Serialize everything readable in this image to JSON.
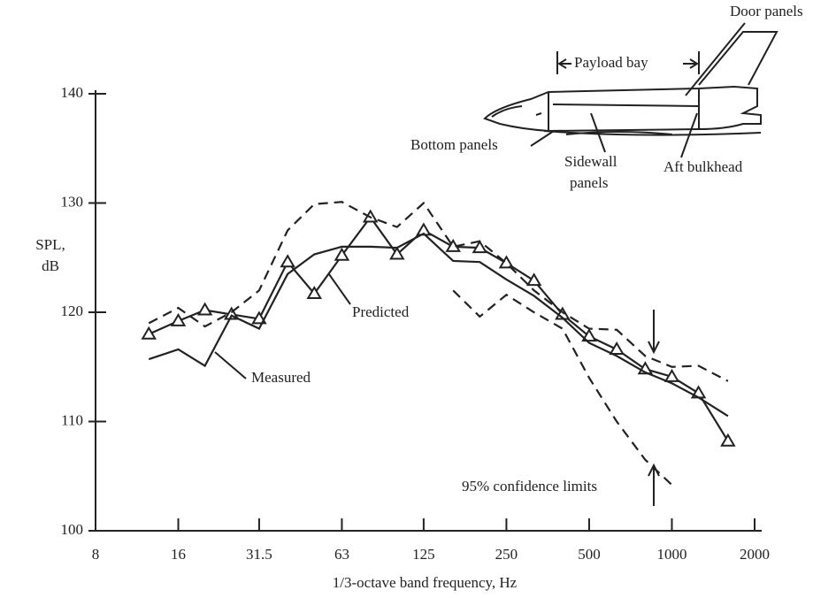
{
  "chart_data": {
    "type": "line",
    "x": [
      12.5,
      16,
      20,
      25,
      31.5,
      40,
      50,
      63,
      80,
      100,
      125,
      160,
      200,
      250,
      315,
      400,
      500,
      630,
      800,
      1000,
      1250,
      1600
    ],
    "series": [
      {
        "color": "#222222",
        "marker": "triangle",
        "dashed": false,
        "values": [
          118,
          119.2,
          120.2,
          119.8,
          119.4,
          124.6,
          121.7,
          125.2,
          128.7,
          125.3,
          127.5,
          126,
          125.9,
          124.5,
          122.9,
          119.8,
          117.8,
          116.6,
          114.8,
          114.1,
          112.6,
          108.2
        ]
      },
      {
        "color": "#222222",
        "marker": "none",
        "dashed": false,
        "values": [
          115.7,
          116.6,
          115.1,
          119.7,
          118.5,
          123.5,
          125.3,
          126,
          126,
          125.9,
          127.2,
          124.7,
          124.6,
          123,
          121.5,
          119.5,
          117.2,
          116,
          114.5,
          113.5,
          112.2,
          110.5
        ]
      },
      {
        "color": "#222222",
        "marker": "none",
        "dashed": true,
        "values": [
          119,
          120.4,
          118.7,
          120,
          122,
          127.5,
          129.9,
          130.1,
          128.7,
          127.8,
          130,
          126,
          126.5,
          124.5,
          122,
          120,
          118.5,
          118.4,
          116,
          115,
          115.1,
          113.7
        ]
      },
      {
        "color": "#222222",
        "marker": "none",
        "dashed": true,
        "values": [
          null,
          null,
          null,
          null,
          null,
          null,
          null,
          null,
          null,
          null,
          null,
          122,
          119.6,
          121.6,
          120,
          118.5,
          114,
          110,
          106.5,
          104.2,
          null,
          null
        ]
      }
    ],
    "xscale": "log",
    "xlim": [
      8,
      2000
    ],
    "xticks": [
      8,
      16,
      31.5,
      63,
      125,
      250,
      500,
      1000,
      2000
    ],
    "ylim": [
      100,
      140
    ],
    "yticks": [
      100,
      110,
      120,
      130,
      140
    ],
    "xlabel": "1/3-octave band frequency, Hz",
    "ylabel": [
      "SPL,",
      "dB"
    ],
    "annotations": [
      "Measured",
      "Predicted",
      "95% confidence limits"
    ],
    "diagram_labels": [
      "Door panels",
      "Payload bay",
      "Bottom panels",
      "Sidewall",
      "panels",
      "Aft bulkhead"
    ]
  }
}
